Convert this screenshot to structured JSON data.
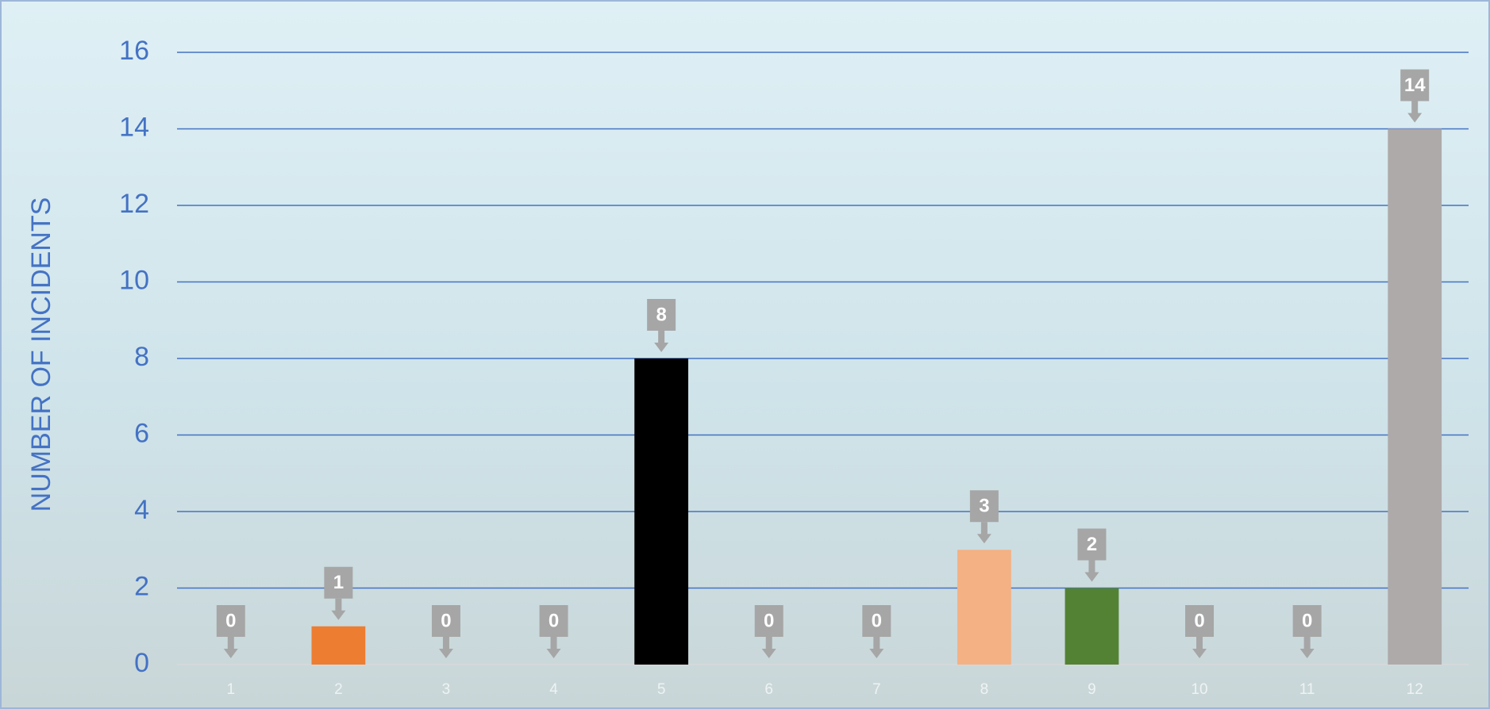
{
  "chart_data": {
    "type": "bar",
    "y_axis_label": "NUMBER OF INCIDENTS",
    "categories": [
      "1",
      "2",
      "3",
      "4",
      "5",
      "6",
      "7",
      "8",
      "9",
      "10",
      "11",
      "12"
    ],
    "values": [
      0,
      1,
      0,
      0,
      8,
      0,
      0,
      3,
      2,
      0,
      0,
      14
    ],
    "colors": [
      null,
      "#ed7d31",
      null,
      null,
      "#000000",
      null,
      null,
      "#f4b183",
      "#548235",
      null,
      null,
      "#aeaaaa"
    ],
    "ylim": [
      0,
      16
    ],
    "yticks": [
      0,
      2,
      4,
      6,
      8,
      10,
      12,
      14,
      16
    ],
    "grid": true
  }
}
